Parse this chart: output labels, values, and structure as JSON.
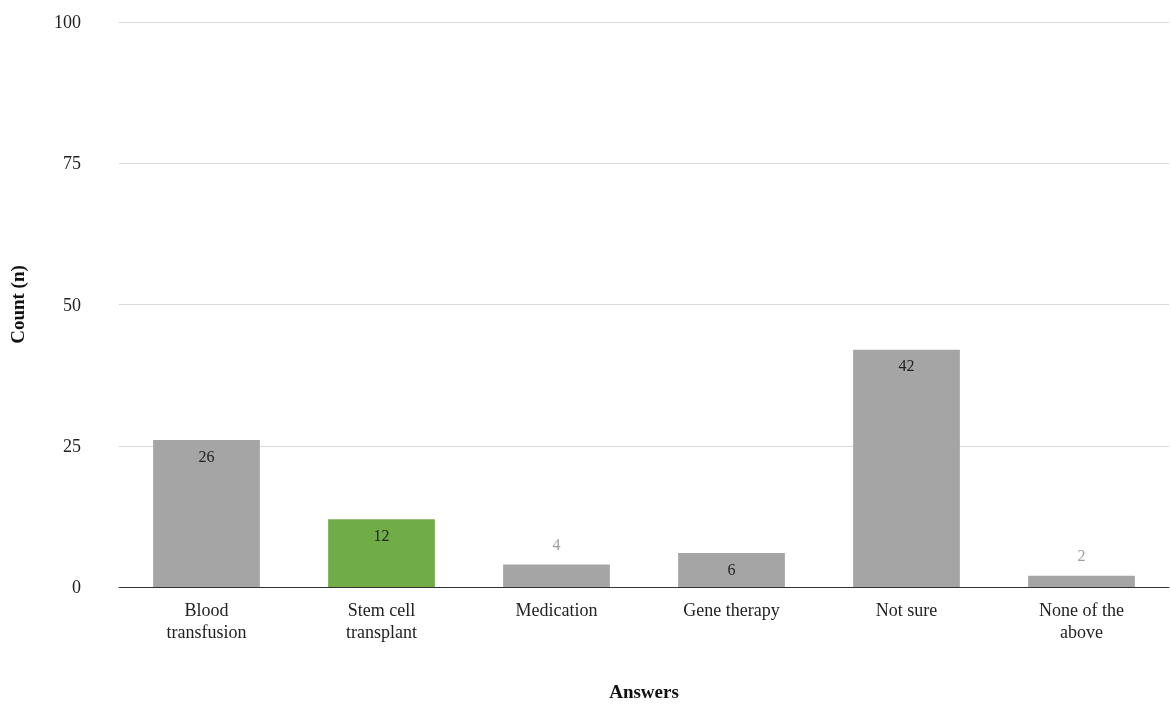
{
  "chart_data": {
    "type": "bar",
    "xlabel": "Answers",
    "ylabel": "Count (n)",
    "categories": [
      "Blood transfusion",
      "Stem cell transplant",
      "Medication",
      "Gene therapy",
      "Not sure",
      "None of the above"
    ],
    "values": [
      26,
      12,
      4,
      6,
      42,
      2
    ],
    "colors": [
      "#a5a5a5",
      "#70ad47",
      "#a5a5a5",
      "#a5a5a5",
      "#a5a5a5",
      "#a5a5a5"
    ],
    "ylim": [
      0,
      100
    ],
    "yticks": [
      0,
      25,
      50,
      75,
      100
    ],
    "grid": "y",
    "data_labels": true
  }
}
